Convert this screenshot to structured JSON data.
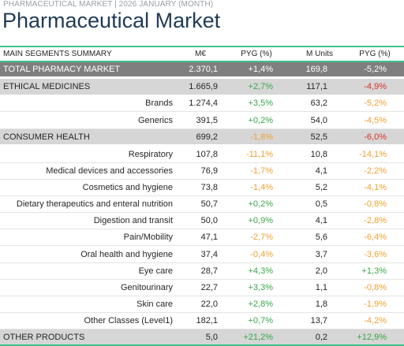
{
  "header": {
    "subtitle": "PHARMACEUTICAL MARKET | 2026 JANUARY (MONTH)",
    "title": "Pharmaceutical Market"
  },
  "table": {
    "columns": [
      "MAIN SEGMENTS SUMMARY",
      "M€",
      "PYG (%)",
      "M Units",
      "PYG (%)"
    ],
    "rows": [
      {
        "label": "TOTAL PHARMACY MARKET",
        "meur": "2.370,1",
        "pyg1": "+1,4%",
        "units": "169,8",
        "pyg2": "-5,2%"
      },
      {
        "label": "ETHICAL MEDICINES",
        "meur": "1.665,9",
        "pyg1": "+2,7%",
        "units": "117,1",
        "pyg2": "-4,9%"
      },
      {
        "label": "Brands",
        "meur": "1.274,4",
        "pyg1": "+3,5%",
        "units": "63,2",
        "pyg2": "-5,2%"
      },
      {
        "label": "Generics",
        "meur": "391,5",
        "pyg1": "+0,2%",
        "units": "54,0",
        "pyg2": "-4,5%"
      },
      {
        "label": "CONSUMER HEALTH",
        "meur": "699,2",
        "pyg1": "-1,8%",
        "units": "52,5",
        "pyg2": "-6,0%"
      },
      {
        "label": "Respiratory",
        "meur": "107,8",
        "pyg1": "-11,1%",
        "units": "10,8",
        "pyg2": "-14,1%"
      },
      {
        "label": "Medical devices and accessories",
        "meur": "76,9",
        "pyg1": "-1,7%",
        "units": "4,1",
        "pyg2": "-2,2%"
      },
      {
        "label": "Cosmetics and hygiene",
        "meur": "73,8",
        "pyg1": "-1,4%",
        "units": "5,2",
        "pyg2": "-4,1%"
      },
      {
        "label": "Dietary therapeutics and enteral nutrition",
        "meur": "50,7",
        "pyg1": "+0,2%",
        "units": "0,5",
        "pyg2": "-0,8%"
      },
      {
        "label": "Digestion and transit",
        "meur": "50,0",
        "pyg1": "+0,9%",
        "units": "4,1",
        "pyg2": "-2,8%"
      },
      {
        "label": "Pain/Mobility",
        "meur": "47,1",
        "pyg1": "-2,7%",
        "units": "5,6",
        "pyg2": "-6,4%"
      },
      {
        "label": "Oral health and hygiene",
        "meur": "37,4",
        "pyg1": "-0,4%",
        "units": "3,7",
        "pyg2": "-3,6%"
      },
      {
        "label": "Eye care",
        "meur": "28,7",
        "pyg1": "+4,3%",
        "units": "2,0",
        "pyg2": "+1,3%"
      },
      {
        "label": "Genitourinary",
        "meur": "22,7",
        "pyg1": "+3,3%",
        "units": "1,1",
        "pyg2": "-0,8%"
      },
      {
        "label": "Skin care",
        "meur": "22,0",
        "pyg1": "+2,8%",
        "units": "1,8",
        "pyg2": "-1,9%"
      },
      {
        "label": "Other Classes (Level1)",
        "meur": "182,1",
        "pyg1": "+0,7%",
        "units": "13,7",
        "pyg2": "-4,2%"
      },
      {
        "label": "OTHER PRODUCTS",
        "meur": "5,0",
        "pyg1": "+21,2%",
        "units": "0,2",
        "pyg2": "+12,9%"
      }
    ]
  },
  "colors": {
    "title": "#1f3b57",
    "accent_line": "#3bbf8a",
    "total_row_bg": "#7f7f7f",
    "segment_row_bg": "#d6d6d6",
    "positive": "#3aa64a",
    "negative": "#f0a030",
    "negative_strong": "#d9302c"
  }
}
